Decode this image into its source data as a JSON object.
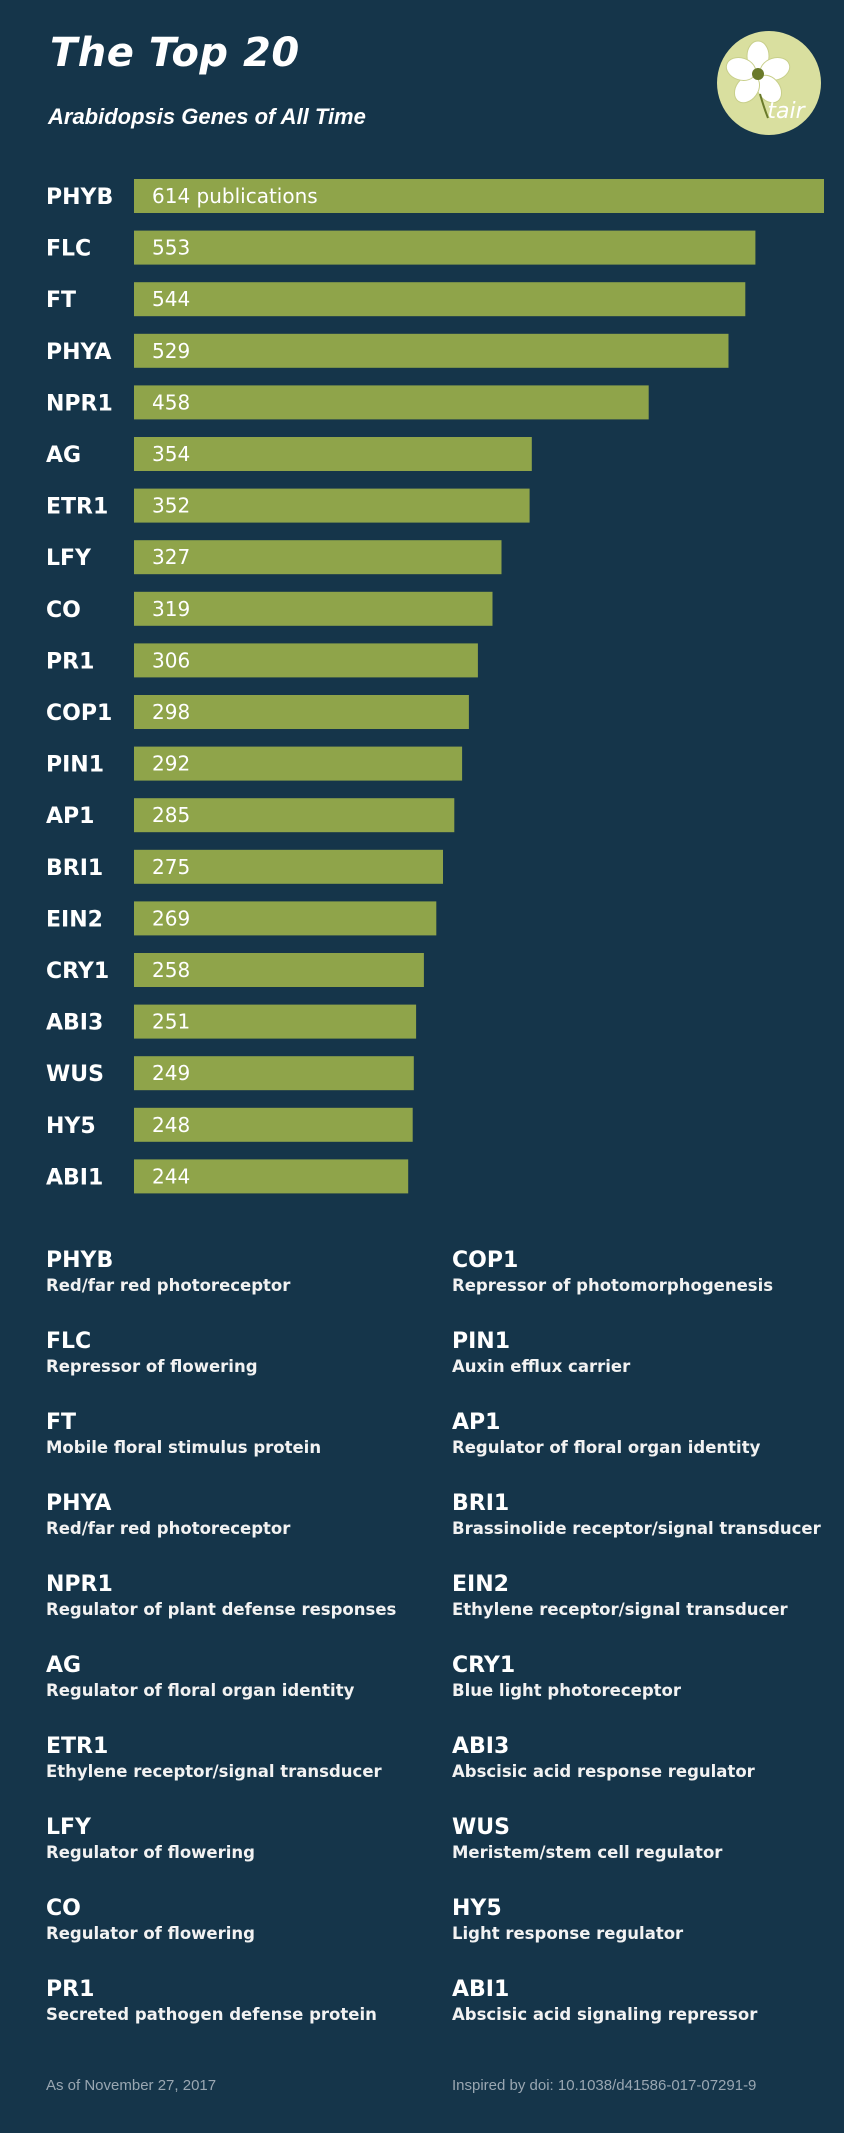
{
  "header": {
    "title": "The Top 20",
    "subtitle": "Arabidopsis Genes of All Time",
    "logo_text": "tair"
  },
  "colors": {
    "background": "#15354a",
    "bar": "#8fa44a",
    "logo_circle": "#d9df9f"
  },
  "chart_data": {
    "type": "bar",
    "orientation": "horizontal",
    "categories": [
      "PHYB",
      "FLC",
      "FT",
      "PHYA",
      "NPR1",
      "AG",
      "ETR1",
      "LFY",
      "CO",
      "PR1",
      "COP1",
      "PIN1",
      "AP1",
      "BRI1",
      "EIN2",
      "CRY1",
      "ABI3",
      "WUS",
      "HY5",
      "ABI1"
    ],
    "values": [
      614,
      553,
      544,
      529,
      458,
      354,
      352,
      327,
      319,
      306,
      298,
      292,
      285,
      275,
      269,
      258,
      251,
      249,
      248,
      244
    ],
    "value_labels": [
      "614 publications",
      "553",
      "544",
      "529",
      "458",
      "354",
      "352",
      "327",
      "319",
      "306",
      "298",
      "292",
      "285",
      "275",
      "269",
      "258",
      "251",
      "249",
      "248",
      "244"
    ],
    "title": "The Top 20",
    "subtitle": "Arabidopsis Genes of All Time",
    "xlabel": "",
    "ylabel": "",
    "xlim": [
      0,
      614
    ],
    "grid": false,
    "legend": "none"
  },
  "legend": {
    "left": [
      {
        "gene": "PHYB",
        "desc": "Red/far red photoreceptor"
      },
      {
        "gene": "FLC",
        "desc": "Repressor of flowering"
      },
      {
        "gene": "FT",
        "desc": "Mobile floral stimulus protein"
      },
      {
        "gene": "PHYA",
        "desc": "Red/far red photoreceptor"
      },
      {
        "gene": "NPR1",
        "desc": "Regulator of plant defense responses"
      },
      {
        "gene": "AG",
        "desc": "Regulator of floral organ identity"
      },
      {
        "gene": "ETR1",
        "desc": "Ethylene receptor/signal transducer"
      },
      {
        "gene": "LFY",
        "desc": "Regulator of flowering"
      },
      {
        "gene": "CO",
        "desc": "Regulator of flowering"
      },
      {
        "gene": "PR1",
        "desc": "Secreted pathogen defense protein"
      }
    ],
    "right": [
      {
        "gene": "COP1",
        "desc": "Repressor of photomorphogenesis"
      },
      {
        "gene": "PIN1",
        "desc": "Auxin efflux carrier"
      },
      {
        "gene": "AP1",
        "desc": "Regulator of floral organ identity"
      },
      {
        "gene": "BRI1",
        "desc": "Brassinolide receptor/signal transducer"
      },
      {
        "gene": "EIN2",
        "desc": "Ethylene receptor/signal transducer"
      },
      {
        "gene": "CRY1",
        "desc": "Blue light photoreceptor"
      },
      {
        "gene": "ABI3",
        "desc": "Abscisic acid response regulator"
      },
      {
        "gene": "WUS",
        "desc": "Meristem/stem cell regulator"
      },
      {
        "gene": "HY5",
        "desc": "Light response regulator"
      },
      {
        "gene": "ABI1",
        "desc": "Abscisic acid signaling repressor"
      }
    ]
  },
  "footer": {
    "date": "As of November 27, 2017",
    "source": "Inspired by doi: 10.1038/d41586-017-07291-9"
  }
}
